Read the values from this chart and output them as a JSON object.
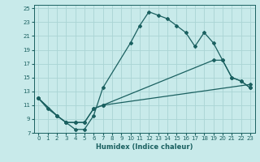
{
  "xlabel": "Humidex (Indice chaleur)",
  "bg_color": "#c8eaea",
  "grid_color": "#aad4d4",
  "line_color": "#1a6060",
  "xlim": [
    -0.5,
    23.5
  ],
  "ylim": [
    7,
    25.5
  ],
  "xticks": [
    0,
    1,
    2,
    3,
    4,
    5,
    6,
    7,
    8,
    9,
    10,
    11,
    12,
    13,
    14,
    15,
    16,
    17,
    18,
    19,
    20,
    21,
    22,
    23
  ],
  "yticks": [
    7,
    9,
    11,
    13,
    15,
    17,
    19,
    21,
    23,
    25
  ],
  "lines": [
    {
      "x": [
        0,
        1,
        2,
        3,
        4,
        5,
        6,
        7,
        10,
        11,
        12,
        13,
        14,
        15,
        16,
        17,
        18,
        19,
        20,
        21,
        22,
        23
      ],
      "y": [
        12,
        10.5,
        9.5,
        8.5,
        7.5,
        7.5,
        9.5,
        13.5,
        20,
        22.5,
        24.5,
        24,
        23.5,
        22.5,
        21.5,
        19.5,
        21.5,
        20.0,
        17.5,
        15.0,
        14.5,
        13.5
      ]
    },
    {
      "x": [
        0,
        2,
        3,
        4,
        5,
        6,
        7,
        23
      ],
      "y": [
        12,
        9.5,
        8.5,
        8.5,
        8.5,
        10.5,
        11.0,
        14.0
      ]
    },
    {
      "x": [
        0,
        2,
        3,
        4,
        5,
        6,
        7,
        19,
        20,
        21,
        22,
        23
      ],
      "y": [
        12,
        9.5,
        8.5,
        8.5,
        8.5,
        10.5,
        11.0,
        17.5,
        17.5,
        15.0,
        14.5,
        13.5
      ]
    }
  ]
}
